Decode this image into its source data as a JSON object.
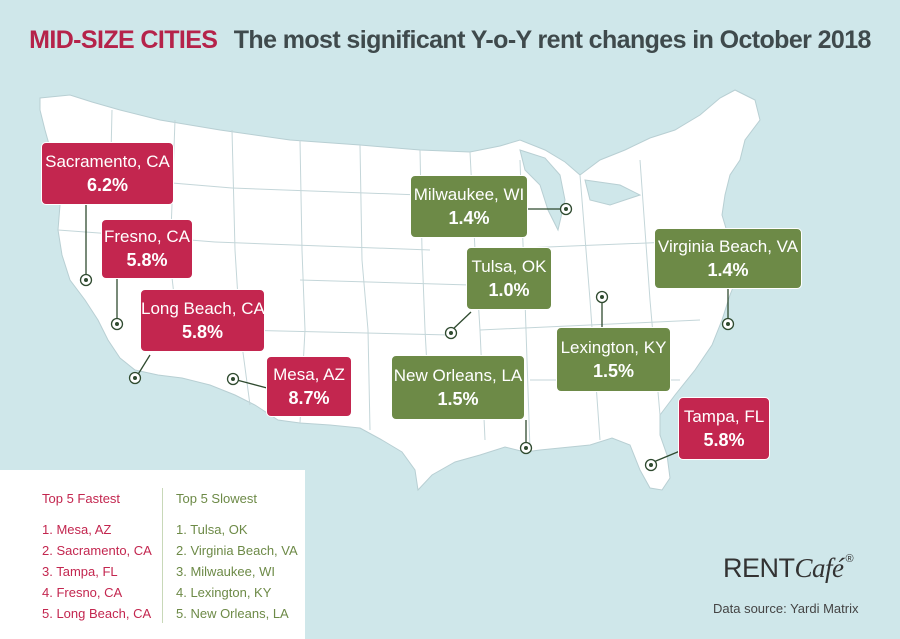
{
  "title": {
    "category": "MID-SIZE CITIES",
    "headline": "The most significant Y-o-Y rent changes in October 2018"
  },
  "colors": {
    "fastest": "#c3264f",
    "slowest": "#6d8a47",
    "water": "#cfe7ea",
    "land": "#ffffff"
  },
  "callouts": [
    {
      "id": "sacramento",
      "city": "Sacramento, CA",
      "change": "6.2%",
      "group": "fastest"
    },
    {
      "id": "fresno",
      "city": "Fresno, CA",
      "change": "5.8%",
      "group": "fastest"
    },
    {
      "id": "long-beach",
      "city": "Long Beach, CA",
      "change": "5.8%",
      "group": "fastest"
    },
    {
      "id": "mesa",
      "city": "Mesa, AZ",
      "change": "8.7%",
      "group": "fastest"
    },
    {
      "id": "milwaukee",
      "city": "Milwaukee, WI",
      "change": "1.4%",
      "group": "slowest"
    },
    {
      "id": "tulsa",
      "city": "Tulsa, OK",
      "change": "1.0%",
      "group": "slowest"
    },
    {
      "id": "virginia-beach",
      "city": "Virginia Beach, VA",
      "change": "1.4%",
      "group": "slowest"
    },
    {
      "id": "lexington",
      "city": "Lexington, KY",
      "change": "1.5%",
      "group": "slowest"
    },
    {
      "id": "new-orleans",
      "city": "New Orleans, LA",
      "change": "1.5%",
      "group": "slowest"
    },
    {
      "id": "tampa",
      "city": "Tampa, FL",
      "change": "5.8%",
      "group": "fastest"
    }
  ],
  "legend": {
    "fastest_title": "Top 5 Fastest",
    "fastest": [
      "1. Mesa, AZ",
      "2. Sacramento, CA",
      "3. Tampa, FL",
      "4. Fresno, CA",
      "5. Long Beach, CA"
    ],
    "slowest_title": "Top 5 Slowest",
    "slowest": [
      "1. Tulsa, OK",
      "2. Virginia Beach, VA",
      "3. Milwaukee, WI",
      "4. Lexington, KY",
      "5. New Orleans, LA"
    ]
  },
  "logo": {
    "part1": "RENT",
    "part2": "Café",
    "mark": "®"
  },
  "source": "Data source:  Yardi Matrix"
}
